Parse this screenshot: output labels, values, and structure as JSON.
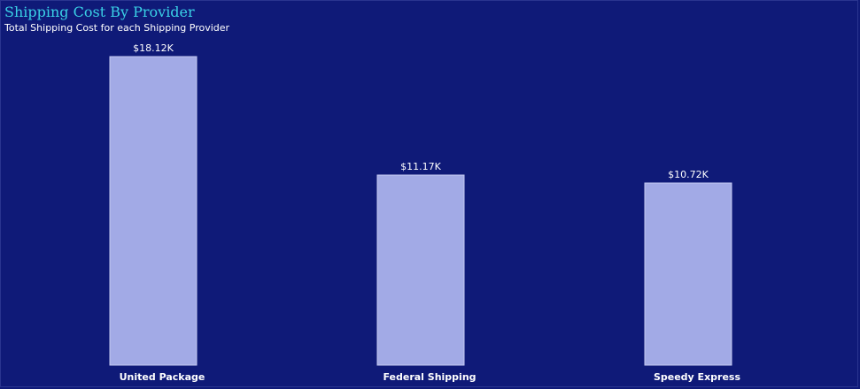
{
  "title": "Shipping Cost By Provider",
  "subtitle": "Total Shipping Cost for each Shipping Provider",
  "colors": {
    "background": "#0f1a78",
    "title": "#3ad1e6",
    "bar": "#a2aae6",
    "text": "#ffffff"
  },
  "chart_data": {
    "type": "bar",
    "title": "Shipping Cost By Provider",
    "subtitle": "Total Shipping Cost for each Shipping Provider",
    "categories": [
      "United Package",
      "Federal Shipping",
      "Speedy Express"
    ],
    "values": [
      18120,
      11170,
      10720
    ],
    "data_labels": [
      "$18.12K",
      "$11.17K",
      "$10.72K"
    ],
    "xlabel": "",
    "ylabel": "",
    "ylim": [
      0,
      18120
    ],
    "grid": false,
    "legend": "none"
  }
}
